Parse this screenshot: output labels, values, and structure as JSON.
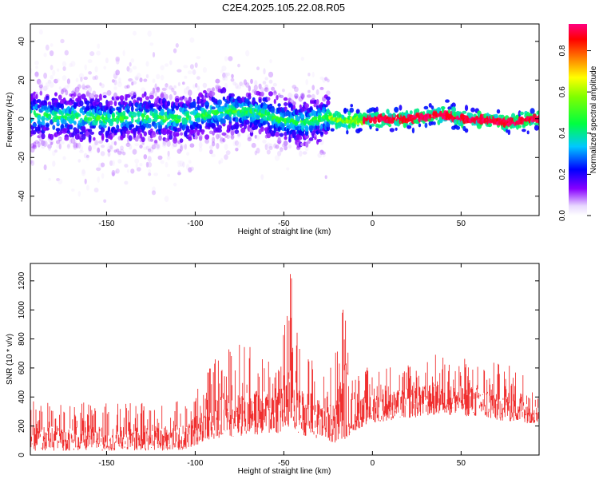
{
  "title": "C2E4.2025.105.22.08.R05",
  "chart_data": [
    {
      "type": "heatmap",
      "xlabel": "Height of straight line (km)",
      "ylabel": "Frequency (Hz)",
      "xlim": [
        -193,
        94
      ],
      "ylim": [
        -50,
        49
      ],
      "xticks": [
        -150,
        -100,
        -50,
        0,
        50
      ],
      "yticks": [
        -40,
        -20,
        0,
        20,
        40
      ],
      "colorbar": {
        "label": "Normalized spectral amplitude",
        "range": [
          0.0,
          0.93
        ],
        "ticks": [
          0.0,
          0.2,
          0.4,
          0.6,
          0.8
        ]
      },
      "ridge": {
        "x": [
          -193,
          -170,
          -150,
          -130,
          -110,
          -95,
          -80,
          -70,
          -60,
          -50,
          -40,
          -30,
          -25,
          -20,
          -10,
          0,
          10,
          20,
          30,
          35,
          40,
          50,
          60,
          70,
          75,
          80,
          90,
          94
        ],
        "y": [
          2,
          1,
          0,
          1,
          0,
          2,
          4,
          4,
          2,
          -1,
          -2,
          0,
          1,
          -1,
          -1,
          0,
          0,
          0,
          1,
          2,
          2,
          0,
          0,
          -1,
          -2,
          -2,
          0,
          0
        ]
      }
    },
    {
      "type": "area",
      "xlabel": "Height of straight line (km)",
      "ylabel": "SNR (10 * v/v)",
      "xlim": [
        -193,
        94
      ],
      "ylim": [
        0,
        1320
      ],
      "xticks": [
        -150,
        -100,
        -50,
        0,
        50
      ],
      "yticks": [
        0,
        200,
        400,
        600,
        800,
        1000,
        1200
      ],
      "color": "#f03030",
      "envelope": {
        "x": [
          -193,
          -180,
          -160,
          -140,
          -120,
          -105,
          -100,
          -95,
          -85,
          -75,
          -65,
          -55,
          -50,
          -46,
          -42,
          -35,
          -28,
          -22,
          -17,
          -15,
          -12,
          -5,
          0,
          10,
          20,
          30,
          40,
          50,
          60,
          70,
          80,
          94
        ],
        "lower": [
          30,
          30,
          30,
          30,
          30,
          35,
          60,
          100,
          120,
          130,
          140,
          150,
          140,
          160,
          150,
          120,
          110,
          80,
          100,
          110,
          150,
          200,
          220,
          240,
          250,
          270,
          280,
          270,
          260,
          240,
          230,
          210
        ],
        "upper": [
          370,
          370,
          360,
          360,
          360,
          380,
          480,
          560,
          720,
          800,
          720,
          760,
          900,
          1320,
          800,
          720,
          560,
          640,
          1080,
          1240,
          640,
          600,
          620,
          640,
          660,
          700,
          700,
          680,
          660,
          640,
          620,
          580
        ]
      }
    }
  ]
}
